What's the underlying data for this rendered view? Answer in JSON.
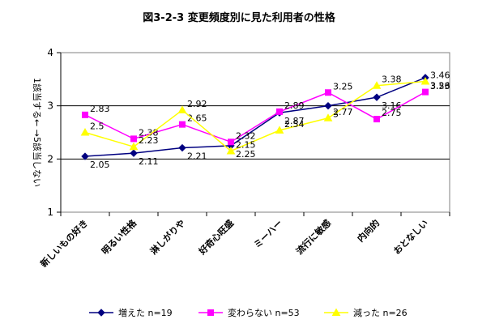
{
  "chart_data": {
    "type": "line",
    "title": "図3-2-3 変更頻度別に見た利用者の性格",
    "ylabel": "1該当する← →5該当しない",
    "ylim": [
      1,
      4
    ],
    "yticks": [
      "1",
      "2",
      "3",
      "4"
    ],
    "grid": true,
    "legend_position": "bottom",
    "categories": [
      "新しいもの好き",
      "明るい性格",
      "淋しがりや",
      "好奇心旺盛",
      "ミーハー",
      "流行に敏感",
      "内向的",
      "おとなしい"
    ],
    "series": [
      {
        "name": "増えた n=19",
        "color": "#000080",
        "marker": "diamond",
        "values": [
          2.05,
          2.11,
          2.21,
          2.25,
          2.87,
          3.0,
          3.16,
          3.53
        ],
        "labels": [
          "2.05",
          "2.11",
          "2.21",
          "2.25",
          "2.87",
          "3",
          "3.16",
          "3.53"
        ]
      },
      {
        "name": "変わらない n=53",
        "color": "#ff00ff",
        "marker": "square",
        "values": [
          2.83,
          2.38,
          2.65,
          2.32,
          2.89,
          3.25,
          2.75,
          3.26
        ],
        "labels": [
          "2.83",
          "2.38",
          "2.65",
          "2.32",
          "2.89",
          "3.25",
          "2.75",
          "3.26"
        ]
      },
      {
        "name": "減った n=26",
        "color": "#ffff00",
        "marker": "triangle",
        "values": [
          2.5,
          2.23,
          2.92,
          2.15,
          2.54,
          2.77,
          3.38,
          3.46
        ],
        "labels": [
          "2.5",
          "2.23",
          "2.92",
          "2.15",
          "2.54",
          "2.77",
          "3.38",
          "3.46"
        ]
      }
    ]
  }
}
